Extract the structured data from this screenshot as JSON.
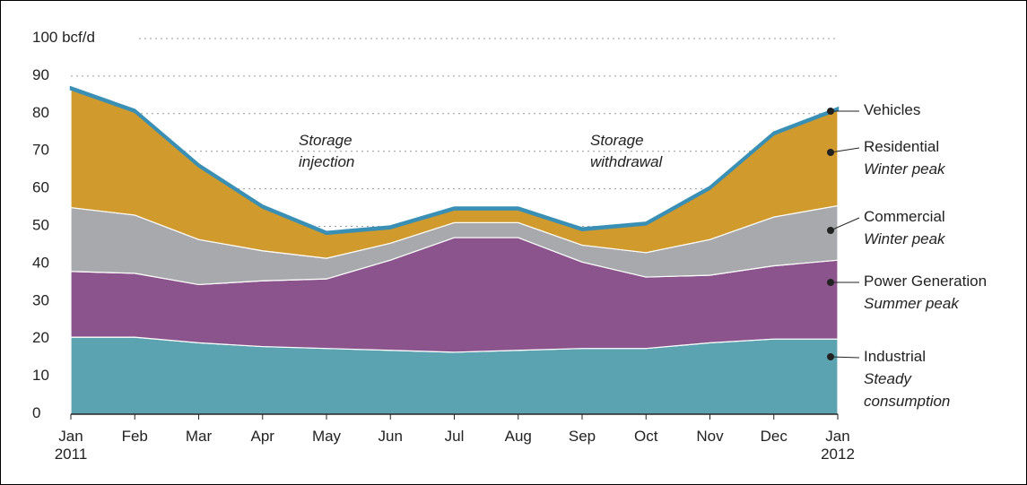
{
  "chart_data": {
    "type": "stacked_area",
    "categories": [
      "Jan\n2011",
      "Feb",
      "Mar",
      "Apr",
      "May",
      "Jun",
      "Jul",
      "Aug",
      "Sep",
      "Oct",
      "Nov",
      "Dec",
      "Jan\n2012"
    ],
    "series": [
      {
        "name": "Industrial",
        "description": "Steady\nconsumption",
        "color": "#5ba3b0",
        "values": [
          20.5,
          20.5,
          19,
          18,
          17.5,
          17,
          16.5,
          17,
          17.5,
          17.5,
          19,
          20,
          20
        ]
      },
      {
        "name": "Power Generation",
        "description": "Summer peak",
        "color": "#8b548c",
        "values": [
          17.5,
          17,
          15.5,
          17.5,
          18.5,
          24,
          30.5,
          30,
          23,
          19,
          18,
          19.5,
          21
        ]
      },
      {
        "name": "Commercial",
        "description": "Winter peak",
        "color": "#a8a9ad",
        "values": [
          17,
          15.5,
          12,
          8,
          5.5,
          4.5,
          4,
          4,
          4.5,
          6.5,
          9.5,
          13,
          14.5
        ]
      },
      {
        "name": "Residential",
        "description": "Winter peak",
        "color": "#d09a2c",
        "values": [
          31.5,
          27.5,
          19.5,
          11.5,
          6.5,
          4,
          3.5,
          3.5,
          4,
          7.5,
          13.5,
          22,
          25.5
        ]
      },
      {
        "name": "Vehicles",
        "color": "#3a8fb5",
        "values": [
          0.5,
          0.5,
          0.5,
          0.5,
          0.5,
          0.5,
          0.5,
          0.5,
          0.5,
          0.5,
          0.5,
          0.5,
          0.5
        ]
      }
    ],
    "annotations": [
      "Storage\ninjection",
      "Storage\nwithdrawal"
    ],
    "ylim": [
      0,
      100
    ],
    "yticks": [
      0,
      10,
      20,
      30,
      40,
      50,
      60,
      70,
      80,
      90,
      {
        "value": 100,
        "label": "100 bcf/d"
      }
    ],
    "grid": true
  }
}
